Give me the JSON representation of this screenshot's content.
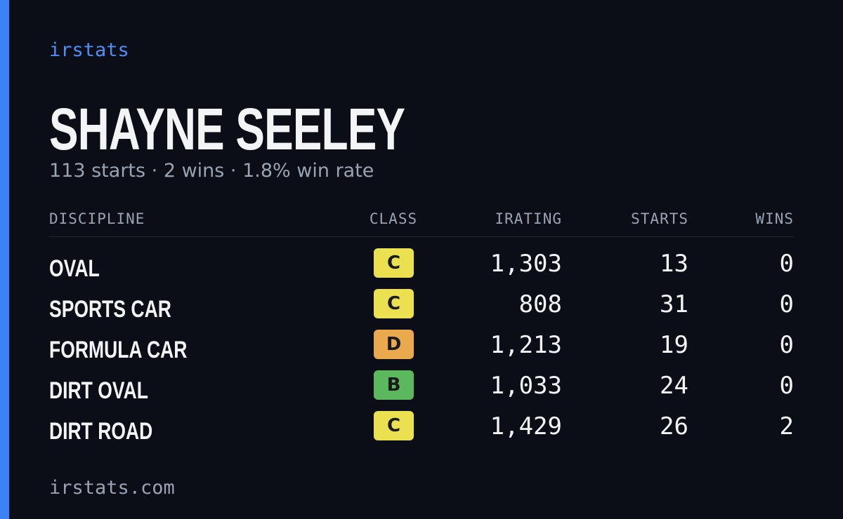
{
  "header": {
    "brand": "irstats",
    "name": "SHAYNE SEELEY",
    "summary": "113 starts · 2 wins · 1.8% win rate"
  },
  "table": {
    "columns": [
      "DISCIPLINE",
      "CLASS",
      "IRATING",
      "STARTS",
      "WINS"
    ],
    "rows": [
      {
        "discipline": "OVAL",
        "class": "C",
        "class_color": "#ebe04f",
        "irating": "1,303",
        "starts": "13",
        "wins": "0"
      },
      {
        "discipline": "SPORTS CAR",
        "class": "C",
        "class_color": "#ebe04f",
        "irating": "808",
        "starts": "31",
        "wins": "0"
      },
      {
        "discipline": "FORMULA CAR",
        "class": "D",
        "class_color": "#eba94e",
        "irating": "1,213",
        "starts": "19",
        "wins": "0"
      },
      {
        "discipline": "DIRT OVAL",
        "class": "B",
        "class_color": "#5cb85c",
        "irating": "1,033",
        "starts": "24",
        "wins": "0"
      },
      {
        "discipline": "DIRT ROAD",
        "class": "C",
        "class_color": "#ebe04f",
        "irating": "1,429",
        "starts": "26",
        "wins": "2"
      }
    ]
  },
  "footer": {
    "site": "irstats.com"
  }
}
